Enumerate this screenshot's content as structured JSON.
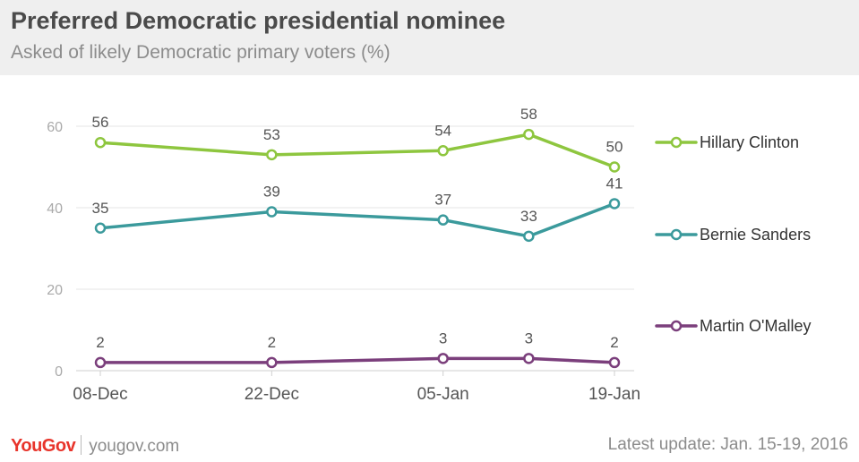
{
  "title": "Preferred Democratic presidential nominee",
  "subtitle": "Asked of likely Democratic primary voters (%)",
  "footer": {
    "brand_you": "YouGov",
    "site": "yougov.com",
    "update": "Latest update: Jan. 15-19, 2016"
  },
  "chart_data": {
    "type": "line",
    "x": [
      "08-Dec",
      "",
      "05-Jan",
      "",
      "19-Jan"
    ],
    "x_positions_days": [
      0,
      14,
      28,
      35,
      42
    ],
    "x_tick_labels": [
      "08-Dec",
      "22-Dec",
      "05-Jan",
      "19-Jan"
    ],
    "x_tick_days": [
      0,
      14,
      28,
      42
    ],
    "y_ticks": [
      0,
      20,
      40,
      60
    ],
    "ylim": [
      0,
      60
    ],
    "grid": true,
    "legend_placement": "right",
    "series": [
      {
        "name": "Hillary Clinton",
        "color": "#8ec63f",
        "values": [
          56,
          53,
          54,
          58,
          50
        ]
      },
      {
        "name": "Bernie Sanders",
        "color": "#3b9a9c",
        "values": [
          35,
          39,
          37,
          33,
          41
        ]
      },
      {
        "name": "Martin O'Malley",
        "color": "#7b3f7c",
        "values": [
          2,
          2,
          3,
          3,
          2
        ]
      }
    ]
  }
}
